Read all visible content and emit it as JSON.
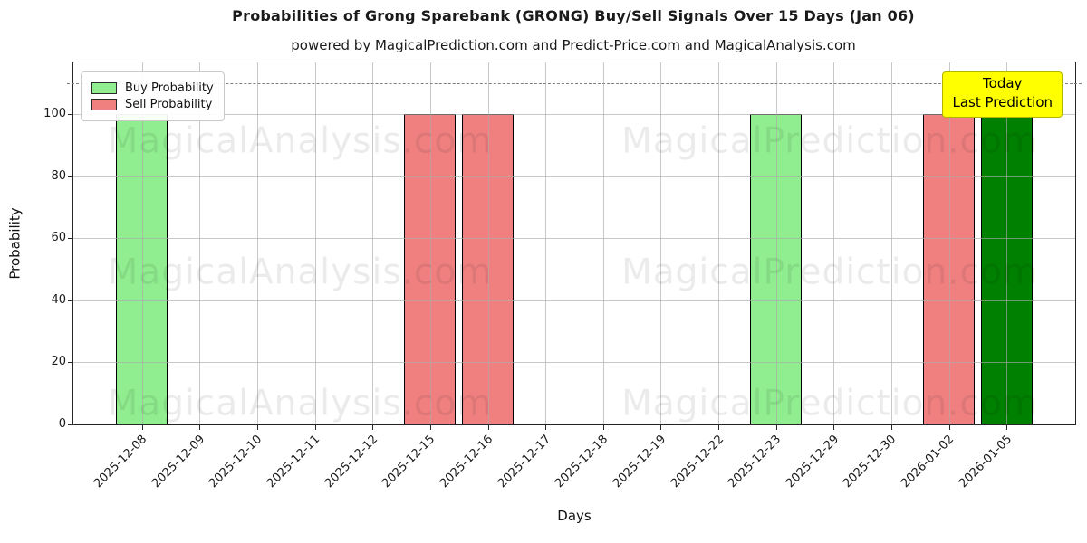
{
  "chart_data": {
    "type": "bar",
    "title": "Probabilities of Grong Sparebank (GRONG) Buy/Sell Signals Over 15 Days (Jan 06)",
    "subtitle": "powered by MagicalPrediction.com and Predict-Price.com and MagicalAnalysis.com",
    "xlabel": "Days",
    "ylabel": "Probability",
    "ylim": [
      0,
      117
    ],
    "yticks": [
      0,
      20,
      40,
      60,
      80,
      100
    ],
    "grid": true,
    "dashed_line_y": 110,
    "legend_position": "upper-left",
    "categories": [
      "2025-12-08",
      "2025-12-09",
      "2025-12-10",
      "2025-12-11",
      "2025-12-12",
      "2025-12-15",
      "2025-12-16",
      "2025-12-17",
      "2025-12-18",
      "2025-12-19",
      "2025-12-22",
      "2025-12-23",
      "2025-12-29",
      "2025-12-30",
      "2026-01-02",
      "2026-01-05"
    ],
    "series": [
      {
        "name": "Buy Probability",
        "color": "#90ee90",
        "values": [
          100,
          0,
          0,
          0,
          0,
          0,
          0,
          0,
          0,
          0,
          0,
          100,
          0,
          0,
          0,
          0
        ]
      },
      {
        "name": "Sell Probability",
        "color": "#f08080",
        "values": [
          0,
          0,
          0,
          0,
          0,
          100,
          100,
          0,
          0,
          0,
          0,
          0,
          0,
          0,
          100,
          0
        ]
      },
      {
        "name": "Last Prediction (today)",
        "color": "#008000",
        "values": [
          0,
          0,
          0,
          0,
          0,
          0,
          0,
          0,
          0,
          0,
          0,
          0,
          0,
          0,
          0,
          100
        ]
      }
    ],
    "legend_items": [
      {
        "label": "Buy Probability",
        "color": "#90ee90"
      },
      {
        "label": "Sell Probability",
        "color": "#f08080"
      }
    ],
    "annotation": {
      "line1": "Today",
      "line2": "Last Prediction",
      "bg_color": "#ffff00",
      "border_color": "#b3b300"
    },
    "watermarks": {
      "left": "MagicalAnalysis.com",
      "right": "MagicalPrediction.com"
    }
  }
}
